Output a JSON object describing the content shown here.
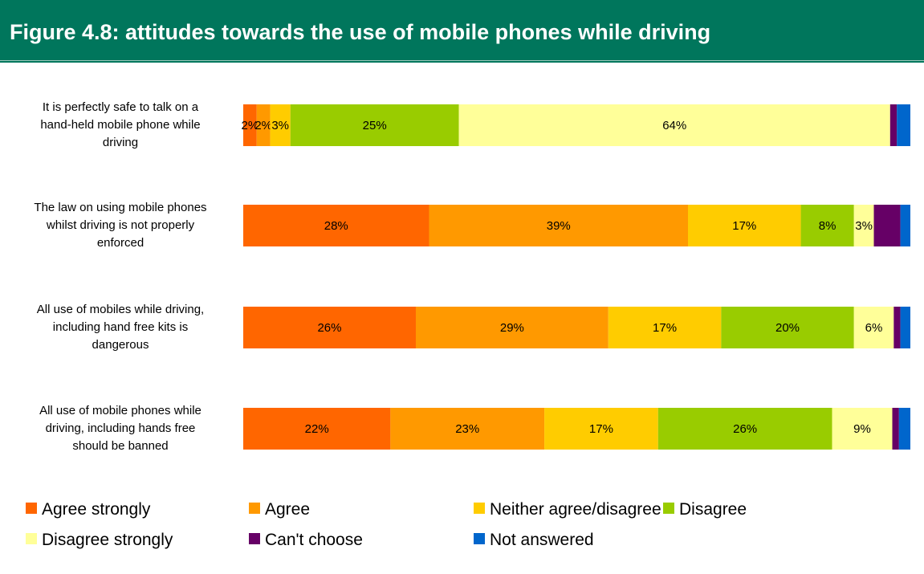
{
  "header": {
    "title": "Figure 4.8: attitudes towards the use of mobile phones while driving"
  },
  "chart_data": {
    "type": "bar",
    "orientation": "horizontal",
    "stacked": true,
    "percent_scale": true,
    "categories": [
      "It is perfectly safe to talk on a hand-held mobile phone while driving",
      "The law on using mobile phones whilst driving is not properly enforced",
      "All use of mobiles while driving, including hand free kits is dangerous",
      "All use of mobile phones while driving, including hands free should be banned"
    ],
    "series": [
      {
        "name": "Agree strongly",
        "color": "#ff6600",
        "values": [
          2,
          28,
          26,
          22
        ],
        "labels": [
          "2%",
          "28%",
          "26%",
          "22%"
        ]
      },
      {
        "name": "Agree",
        "color": "#ff9900",
        "values": [
          2,
          39,
          29,
          23
        ],
        "labels": [
          "2%",
          "39%",
          "29%",
          "23%"
        ]
      },
      {
        "name": "Neither agree/disagree",
        "color": "#ffcc00",
        "values": [
          3,
          17,
          17,
          17
        ],
        "labels": [
          "3%",
          "17%",
          "17%",
          "17%"
        ]
      },
      {
        "name": "Disagree",
        "color": "#99cc00",
        "values": [
          25,
          8,
          20,
          26
        ],
        "labels": [
          "25%",
          "8%",
          "20%",
          "26%"
        ]
      },
      {
        "name": "Disagree strongly",
        "color": "#ffff99",
        "values": [
          64,
          3,
          6,
          9
        ],
        "labels": [
          "64%",
          "3%",
          "6%",
          "9%"
        ]
      },
      {
        "name": "Can't choose",
        "color": "#660066",
        "values": [
          1,
          4,
          1,
          1
        ],
        "labels": [
          "",
          "",
          "",
          ""
        ]
      },
      {
        "name": "Not answered",
        "color": "#0066cc",
        "values": [
          2,
          1.5,
          1.5,
          1.7
        ],
        "labels": [
          "",
          "",
          "",
          ""
        ]
      }
    ],
    "legend_position": "bottom",
    "grid": false
  }
}
